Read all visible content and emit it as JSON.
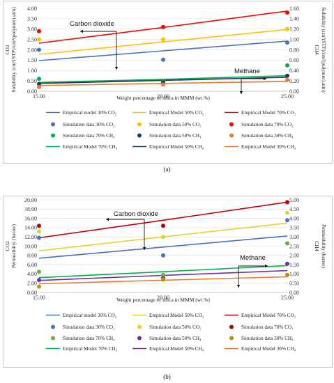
{
  "colors": {
    "s30co2": "#4472C4",
    "s50co2": "#FFC000",
    "s70co2": "#FF0000",
    "s70ch4": "#00B050",
    "s50ch4": "#1F3864",
    "s30ch4": "#ED7D31",
    "s70co2_b": "#C00000",
    "s50co2_b": "#E2D32C",
    "s70ch4_b": "#70AD47",
    "s50ch4_b": "#7030A0",
    "s30ch4_b": "#BF9000"
  },
  "panels": [
    {
      "id": "a",
      "caption": "(a)",
      "chart_data": {
        "type": "scatter",
        "x": [
          15,
          20,
          25
        ],
        "xticks": [
          "15.00",
          "20.00",
          "25.00"
        ],
        "xlabel": "Weight percentage of silica in MMM (wt.%)",
        "ylabel_left_1": "CO2",
        "ylabel_left_2": "Solubility (cm³(STP)/cm³(polymer).atm)",
        "ylabel_right_1": "CH4",
        "ylabel_right_2": "Solubility (cm³(STP)/cm³(polymer).atm)",
        "ylim_left": [
          0,
          4
        ],
        "ylim_right": [
          0,
          1.6
        ],
        "yticks_left": [
          "0.00",
          "0.50",
          "1.00",
          "1.50",
          "2.00",
          "2.50",
          "3.00",
          "3.50",
          "4.00"
        ],
        "yticks_right": [
          "0.00",
          "0.20",
          "0.40",
          "0.60",
          "0.80",
          "1.00",
          "1.20",
          "1.40",
          "1.60"
        ],
        "annotations": [
          "Carbon dioxide",
          "Methane"
        ],
        "lines": [
          {
            "name": "Empirical model 30% CO2",
            "axis": "left",
            "values": [
              1.48,
              1.95,
              2.42
            ],
            "color": "s30co2"
          },
          {
            "name": "Empirical Model 50% CO2",
            "axis": "left",
            "values": [
              1.78,
              2.38,
              2.98
            ],
            "color": "s50co2"
          },
          {
            "name": "Empirical Model 70% CO2",
            "axis": "left",
            "values": [
              2.32,
              3.08,
              3.87
            ],
            "color": "s70co2"
          },
          {
            "name": "Empirical Model 70% CH4",
            "axis": "right",
            "values": [
              0.17,
              0.23,
              0.3
            ],
            "color": "s70ch4"
          },
          {
            "name": "Empirical Model 50% CH4",
            "axis": "right",
            "values": [
              0.15,
              0.21,
              0.27
            ],
            "color": "s50ch4"
          },
          {
            "name": "Empirical Model 30% CH4",
            "axis": "right",
            "values": [
              0.11,
              0.15,
              0.19
            ],
            "color": "s30ch4"
          }
        ],
        "points": [
          {
            "name": "Simulation data 30% CO2",
            "axis": "left",
            "values": [
              2.0,
              1.52,
              2.35
            ],
            "color": "s30co2"
          },
          {
            "name": "Simulation data 50% CO2",
            "axis": "left",
            "values": [
              2.5,
              2.5,
              3.0
            ],
            "color": "s50co2"
          },
          {
            "name": "Simulation data 70% CO2",
            "axis": "left",
            "values": [
              2.9,
              3.1,
              3.8
            ],
            "color": "s70co2"
          },
          {
            "name": "Simulation data 70% CH4",
            "axis": "right",
            "values": [
              0.24,
              0.2,
              0.5
            ],
            "color": "s70ch4"
          },
          {
            "name": "Simulation data 50% CH4",
            "axis": "right",
            "values": [
              0.14,
              0.17,
              0.3
            ],
            "color": "s50ch4"
          },
          {
            "name": "Simulation data 30% CH4",
            "axis": "right",
            "values": [
              0.08,
              0.13,
              0.22
            ],
            "color": "s30ch4"
          }
        ],
        "legend": [
          {
            "label": "Empirical model 30% CO₂",
            "kind": "line",
            "color": "s30co2"
          },
          {
            "label": "Empirical Model 50% CO₂",
            "kind": "line",
            "color": "s50co2"
          },
          {
            "label": "Empirical Model 70% CO₂",
            "kind": "line",
            "color": "s70co2"
          },
          {
            "label": "Simulation data 30% CO₂",
            "kind": "dot",
            "color": "s30co2"
          },
          {
            "label": "Simulation data 50% CO₂",
            "kind": "dot",
            "color": "s50co2"
          },
          {
            "label": "Simulation data 70% CO₂",
            "kind": "dot",
            "color": "s70co2"
          },
          {
            "label": "Simulation data 70% CH₄",
            "kind": "dot",
            "color": "s70ch4"
          },
          {
            "label": "Simulation data 50% CH₄",
            "kind": "dot",
            "color": "s50ch4"
          },
          {
            "label": "Simulation data 30% CH₄",
            "kind": "dot",
            "color": "s30ch4"
          },
          {
            "label": "Empirical Model 70% CH₄",
            "kind": "line",
            "color": "s70ch4"
          },
          {
            "label": "Empirical Model 50% CH₄",
            "kind": "line",
            "color": "s50ch4"
          },
          {
            "label": "Empirical Model 30% CH₄",
            "kind": "line",
            "color": "s30ch4"
          }
        ]
      }
    },
    {
      "id": "b",
      "caption": "(b)",
      "chart_data": {
        "type": "scatter",
        "x": [
          15,
          20,
          25
        ],
        "xticks": [
          "15.00",
          "20.00",
          "25.00"
        ],
        "xlabel": "Weight percentage of silica in MMM (wt.%)",
        "ylabel_left_1": "CO2",
        "ylabel_left_2": "Permeability (barrer)",
        "ylabel_right_1": "CH4",
        "ylabel_right_2": "Permeability (barrer)",
        "ylim_left": [
          0,
          20
        ],
        "ylim_right": [
          0,
          5
        ],
        "yticks_left": [
          "0.00",
          "2.00",
          "4.00",
          "6.00",
          "8.00",
          "10.00",
          "12.00",
          "14.00",
          "16.00",
          "18.00",
          "20.00"
        ],
        "yticks_right": [
          "0.00",
          "0.50",
          "1.00",
          "1.50",
          "2.00",
          "2.50",
          "3.00",
          "3.50",
          "4.00",
          "4.50",
          "5.00"
        ],
        "annotations": [
          "Carbon dioxide",
          "Methane"
        ],
        "lines": [
          {
            "name": "Empirical model 30% CO2",
            "axis": "left",
            "values": [
              7.4,
              9.8,
              12.2
            ],
            "color": "s30co2"
          },
          {
            "name": "Empirical Model 50% CO2",
            "axis": "left",
            "values": [
              9.0,
              12.0,
              15.0
            ],
            "color": "s50co2_b"
          },
          {
            "name": "Empirical Model 70% CO2",
            "axis": "left",
            "values": [
              11.8,
              15.6,
              19.5
            ],
            "color": "s70co2_b"
          },
          {
            "name": "Empirical Model 70% CH4",
            "axis": "right",
            "values": [
              0.8,
              1.12,
              1.45
            ],
            "color": "s70ch4"
          },
          {
            "name": "Empirical Model 50% CH4",
            "axis": "right",
            "values": [
              0.65,
              0.92,
              1.18
            ],
            "color": "s50ch4_b"
          },
          {
            "name": "Empirical Model 30% CH4",
            "axis": "right",
            "values": [
              0.47,
              0.66,
              0.85
            ],
            "color": "s30ch4"
          }
        ],
        "points": [
          {
            "name": "Simulation data 30% CO2",
            "axis": "left",
            "values": [
              11.8,
              8.0,
              15.6
            ],
            "color": "s30co2"
          },
          {
            "name": "Simulation data 50% CO2",
            "axis": "left",
            "values": [
              13.2,
              12.0,
              17.2
            ],
            "color": "s50co2_b"
          },
          {
            "name": "Simulation data 70% CO2",
            "axis": "left",
            "values": [
              14.4,
              14.4,
              19.5
            ],
            "color": "s70co2_b"
          },
          {
            "name": "Simulation data 70% CH4",
            "axis": "right",
            "values": [
              1.12,
              0.95,
              2.65
            ],
            "color": "s70ch4_b"
          },
          {
            "name": "Simulation data 50% CH4",
            "axis": "right",
            "values": [
              0.67,
              0.78,
              1.55
            ],
            "color": "s50ch4_b"
          },
          {
            "name": "Simulation data 30% CH4",
            "axis": "right",
            "values": [
              0.32,
              0.7,
              0.95
            ],
            "color": "s30ch4_b"
          }
        ],
        "legend": [
          {
            "label": "Empirical model 30% CO₂",
            "kind": "line",
            "color": "s30co2"
          },
          {
            "label": "Empirical Model 50% CO₂",
            "kind": "line",
            "color": "s50co2_b"
          },
          {
            "label": "Empirical Model 70% CO₂",
            "kind": "line",
            "color": "s70co2_b"
          },
          {
            "label": "Simulation data 30% CO₂",
            "kind": "dot",
            "color": "s30co2"
          },
          {
            "label": "Simulation data 50% CO₂",
            "kind": "dot",
            "color": "s50co2_b"
          },
          {
            "label": "Simulation data 70% CO₂",
            "kind": "dot",
            "color": "s70co2_b"
          },
          {
            "label": "Simulation data 70% CH₄",
            "kind": "dot",
            "color": "s70ch4_b"
          },
          {
            "label": "Simulation data 50% CH₄",
            "kind": "dot",
            "color": "s50ch4_b"
          },
          {
            "label": "Simulation data 30% CH₄",
            "kind": "dot",
            "color": "s30ch4_b"
          },
          {
            "label": "Empirical Model 70% CH₄",
            "kind": "line",
            "color": "s70ch4"
          },
          {
            "label": "Empirical Model 50% CH₄",
            "kind": "line",
            "color": "s50ch4_b"
          },
          {
            "label": "Empirical Model 30% CH₄",
            "kind": "line",
            "color": "s30ch4"
          }
        ]
      }
    }
  ]
}
